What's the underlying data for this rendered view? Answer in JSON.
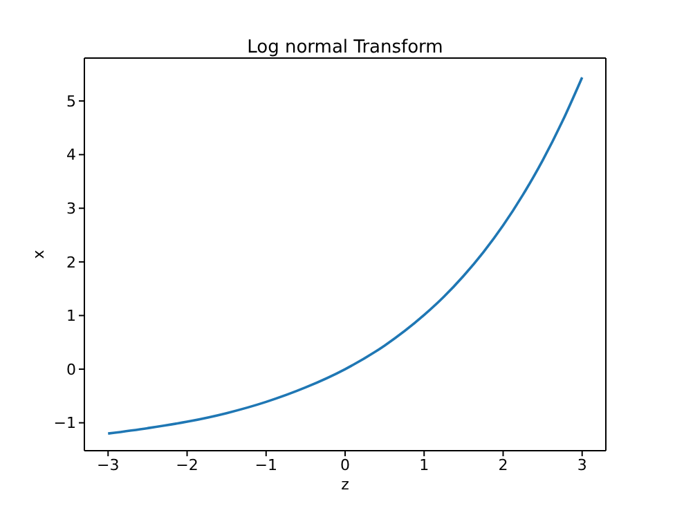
{
  "chart_data": {
    "type": "line",
    "title": "Log normal Transform",
    "xlabel": "z",
    "ylabel": "x",
    "x": [
      -3,
      -2.5,
      -2,
      -1.5,
      -1,
      -0.5,
      0,
      0.5,
      1,
      1.25,
      1.5,
      1.75,
      2,
      2.25,
      2.5,
      2.75,
      3
    ],
    "series": [
      {
        "color": "#1f77b4",
        "values": [
          -1.2,
          -1.1,
          -0.98,
          -0.82,
          -0.61,
          -0.34,
          0,
          0.44,
          1.01,
          1.35,
          1.74,
          2.18,
          2.68,
          3.25,
          3.89,
          4.62,
          5.44
        ]
      }
    ],
    "xlim": [
      -3.3,
      3.3
    ],
    "xticks": [
      -3,
      -2,
      -1,
      0,
      1,
      2,
      3
    ],
    "ylim": [
      -1.52,
      5.8
    ],
    "yticks": [
      -1,
      0,
      1,
      2,
      3,
      4,
      5
    ],
    "grid": false,
    "marker": "none",
    "line_style": "solid"
  }
}
